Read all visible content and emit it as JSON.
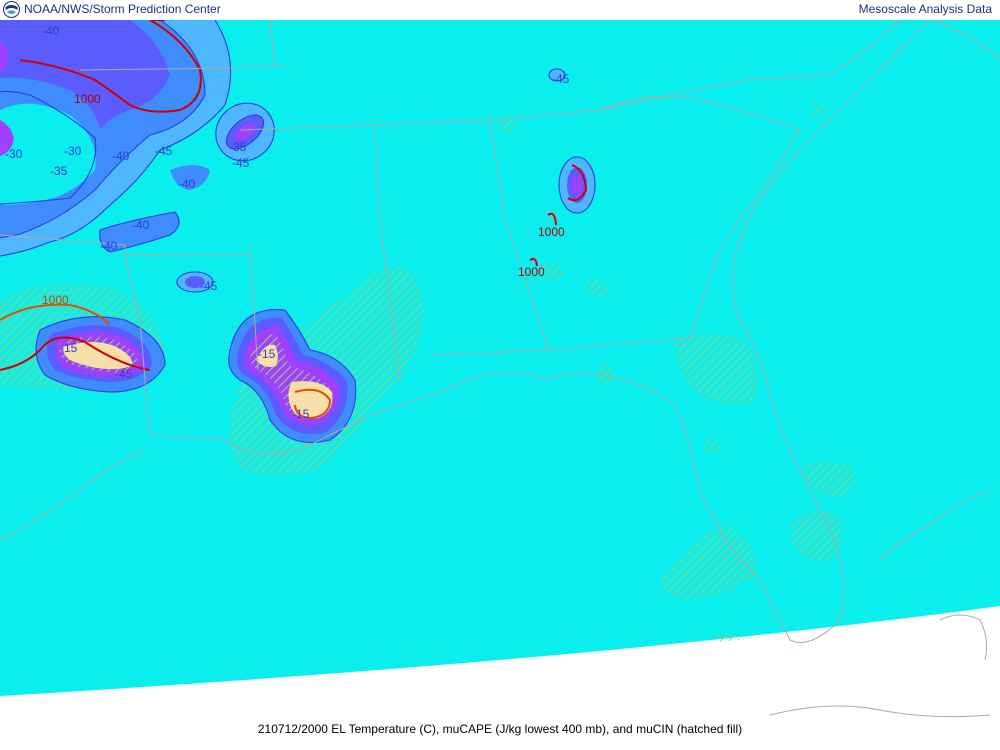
{
  "header": {
    "org_text": "NOAA/NWS/Storm Prediction Center",
    "product_text": "Mesoscale Analysis Data",
    "logo_icon": "noaa-logo-icon"
  },
  "caption": "210712/2000 EL Temperature (C), muCAPE (J/kg lowest 400 mb), and muCIN (hatched fill)",
  "colors": {
    "ocean_fill": "#0aeeee",
    "cold_fill_light": "#4fb7ff",
    "cold_fill": "#3f8cff",
    "cold_fill_dark": "#5a5cff",
    "violet_fill": "#a040ff",
    "warm_fill": "#f7e0a8",
    "cin_hatch": "#9acf6a",
    "contour_blue": "#2b3fd6",
    "contour_red": "#d00000",
    "contour_orange": "#e05000",
    "border_gray": "#a9a9a9"
  },
  "map_labels": {
    "t40a": "-40",
    "t40b": "-40",
    "t40c": "-40",
    "t40d": "-40",
    "t40e": "-40",
    "t45a": "-45",
    "t45b": "-45",
    "t45c": "-45",
    "t45d": "-45",
    "t45e": "-45",
    "t35a": "-35",
    "t35b": "-35",
    "t30a": "-30",
    "t30b": "-30",
    "t15a": "-15",
    "t15b": "-15",
    "t15c": "-15",
    "c1000a": "1000",
    "c1000b": "1000",
    "c1000c": "1000",
    "c1000d": "1000"
  }
}
